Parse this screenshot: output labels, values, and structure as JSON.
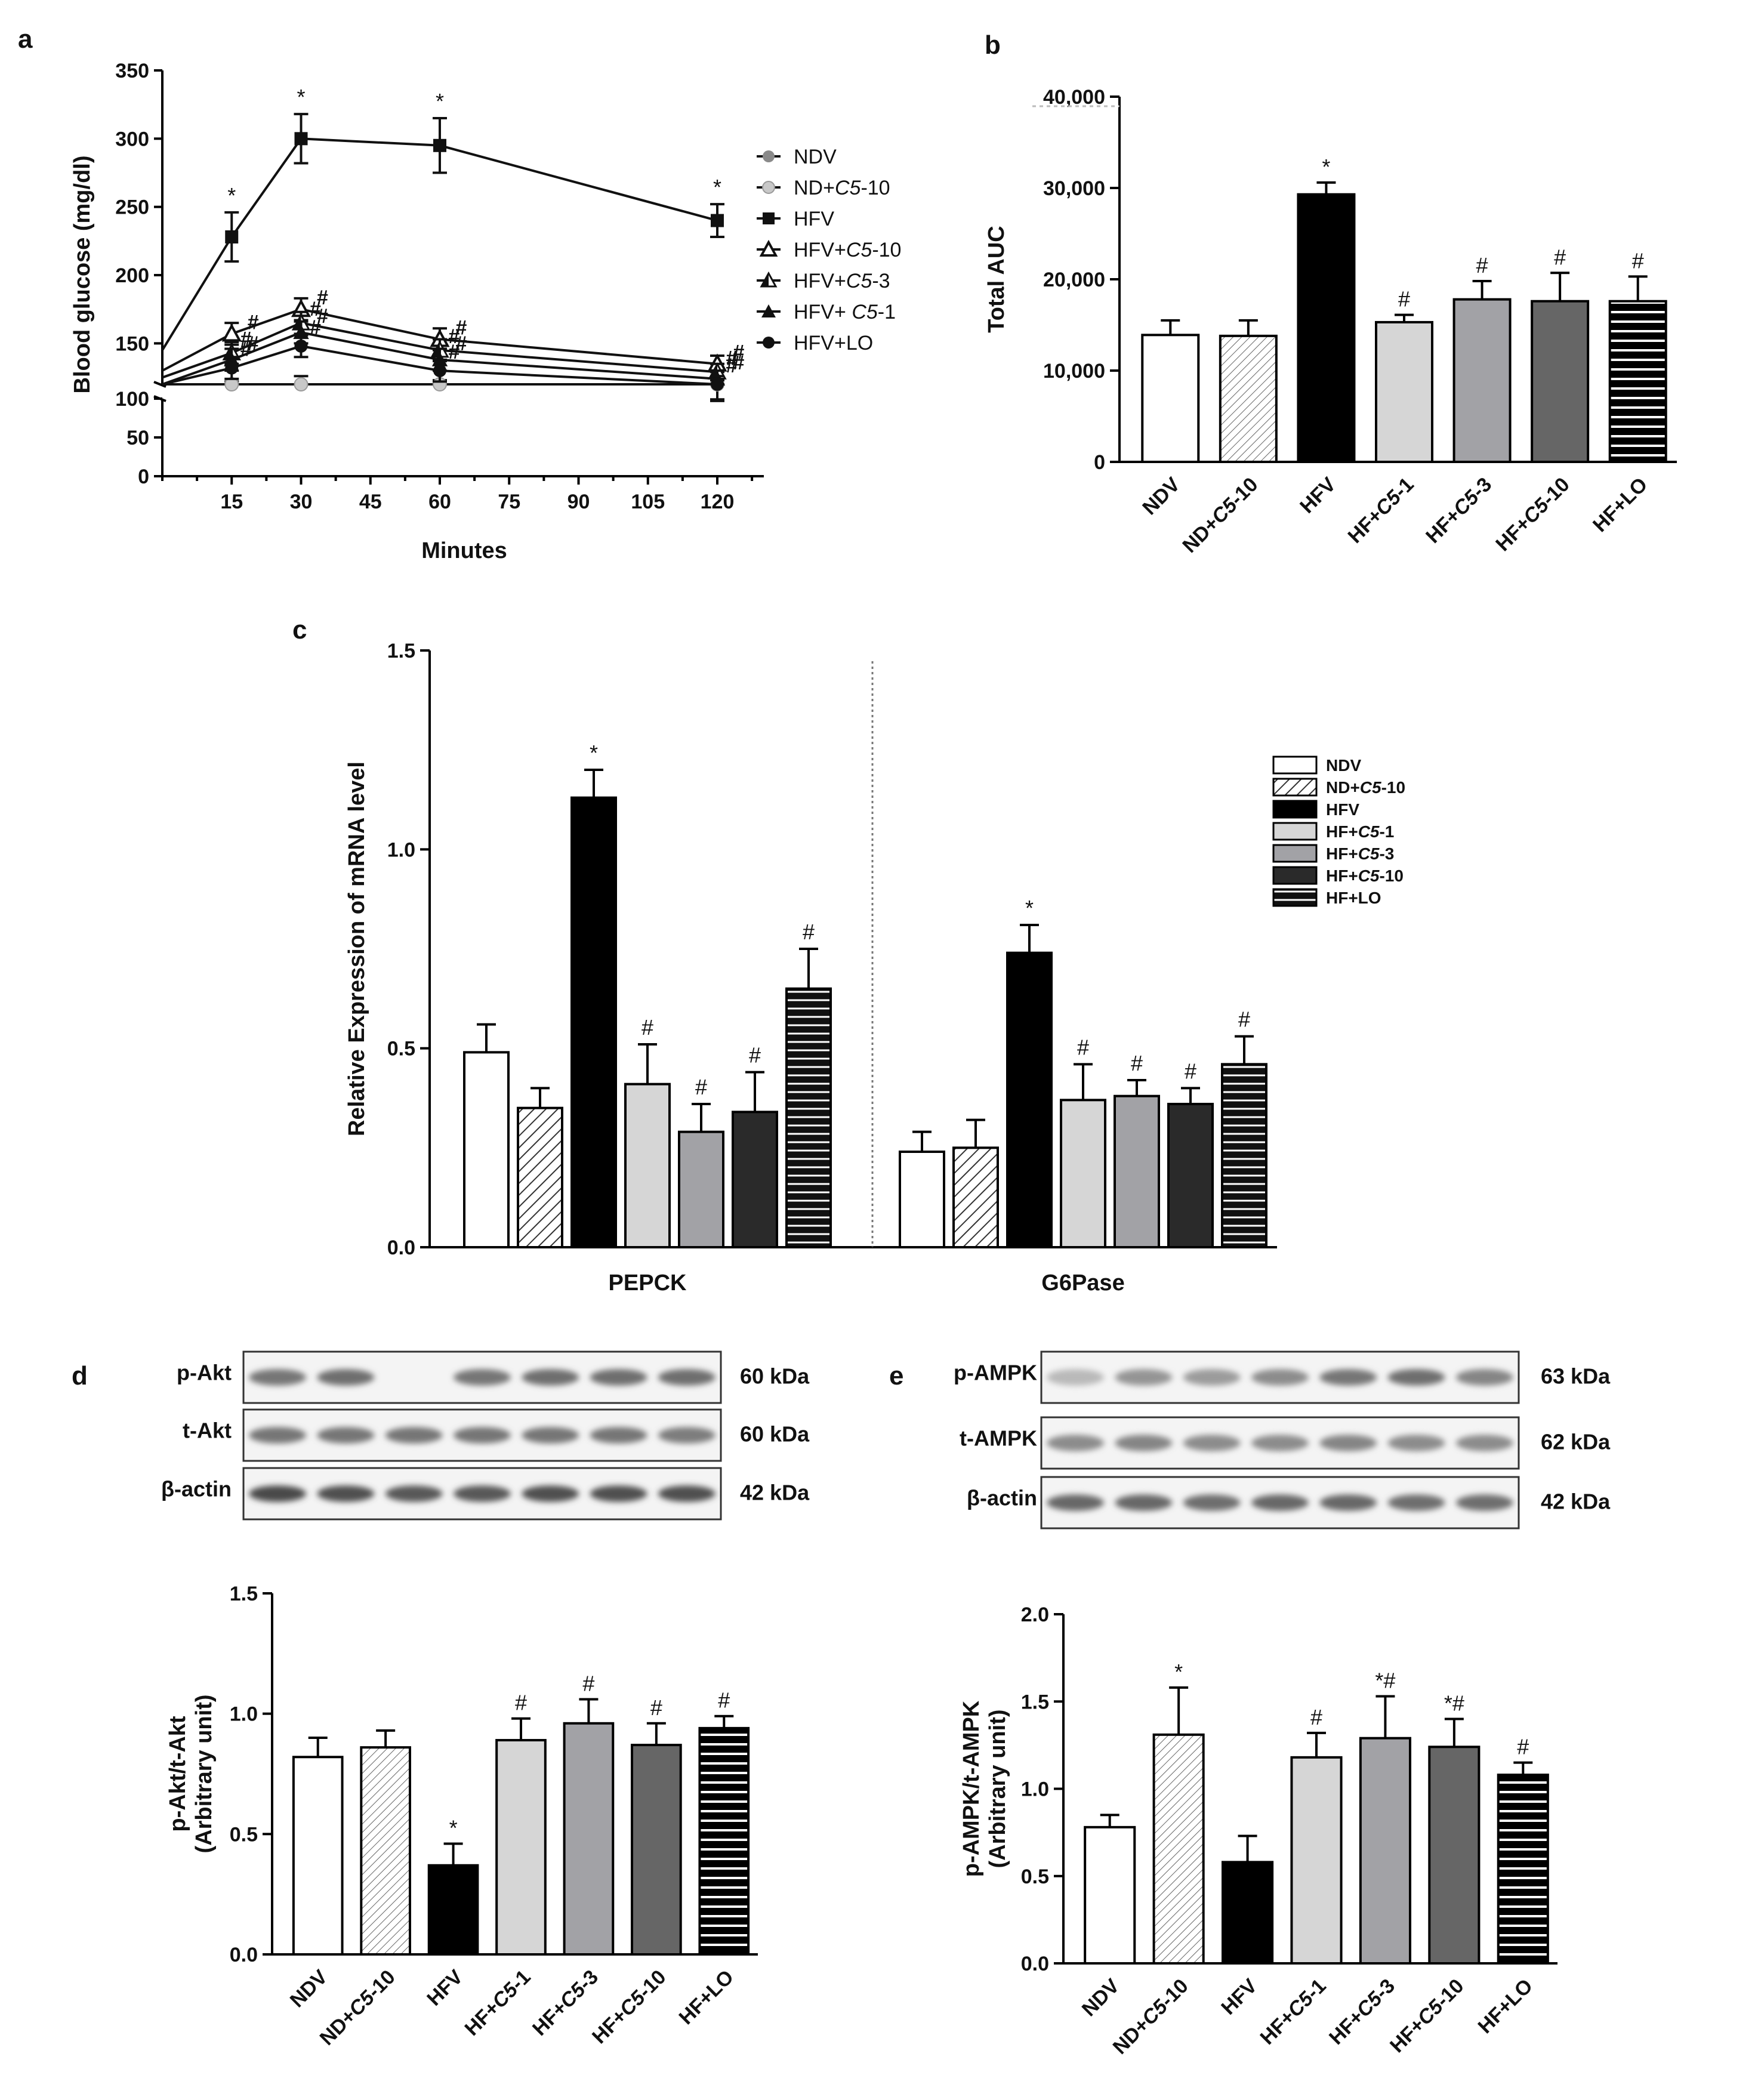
{
  "panel_letters": [
    "a",
    "b",
    "c",
    "d",
    "e"
  ],
  "colors": {
    "NDV": "#ffffff",
    "ND+C5-10": "#ffffff",
    "HFV": "#000000",
    "HF+C5-1": "#d6d6d6",
    "HF+C5-3": "#a2a2a6",
    "HF+C5-10": "#6a6a6a",
    "HF+LO": "#111111",
    "HF+C5-10_c": "#2a2a2a"
  },
  "chart_data": [
    {
      "id": "a",
      "type": "line",
      "xlabel": "Minutes",
      "ylabel": "Blood  glucose  (mg/dl)",
      "x_ticks": [
        "15",
        "30",
        "45",
        "60",
        "75",
        "90",
        "105",
        "120"
      ],
      "y_ticks_lower": [
        "0",
        "50",
        "100"
      ],
      "y_ticks_upper": [
        "150",
        "200",
        "250",
        "300",
        "350"
      ],
      "y_axis_break": [
        100,
        120
      ],
      "ylim": [
        0,
        350
      ],
      "xlim": [
        0,
        135
      ],
      "x": [
        0,
        15,
        30,
        60,
        120
      ],
      "series": [
        {
          "name": "NDV",
          "marker": "circle-gray",
          "values": [
            110,
            114,
            118,
            116,
            107
          ],
          "err": [
            0,
            8,
            8,
            7,
            8
          ]
        },
        {
          "name": "ND+C5-10",
          "marker": "circle-lightgray",
          "values": [
            108,
            110,
            113,
            112,
            104
          ],
          "err": [
            0,
            7,
            7,
            6,
            7
          ]
        },
        {
          "name": "HFV",
          "marker": "square",
          "values": [
            145,
            228,
            300,
            295,
            240
          ],
          "err": [
            0,
            18,
            18,
            20,
            12
          ],
          "sig": [
            "",
            "*",
            "*",
            "*",
            "*"
          ]
        },
        {
          "name": "HFV+C5-10",
          "marker": "triangle-open",
          "values": [
            130,
            157,
            175,
            153,
            135
          ],
          "err": [
            0,
            8,
            8,
            8,
            6
          ],
          "sig": [
            "",
            "#",
            "#",
            "#",
            "#"
          ]
        },
        {
          "name": "HFV+C5-3",
          "marker": "triangle-half",
          "values": [
            125,
            143,
            165,
            145,
            129
          ],
          "err": [
            0,
            8,
            8,
            8,
            6
          ],
          "sig": [
            "",
            "#",
            "#",
            "#",
            "#"
          ]
        },
        {
          "name": "HFV+ C5-1",
          "marker": "triangle-filled",
          "values": [
            120,
            138,
            158,
            138,
            124
          ],
          "err": [
            0,
            8,
            8,
            8,
            6
          ],
          "sig": [
            "",
            "#",
            "#",
            "#",
            "#"
          ]
        },
        {
          "name": "HFV+LO",
          "marker": "circle-black",
          "values": [
            118,
            132,
            148,
            130,
            120
          ],
          "err": [
            0,
            8,
            8,
            8,
            6
          ],
          "sig": [
            "",
            "#",
            "#",
            "#",
            "#"
          ]
        }
      ],
      "legend": [
        "NDV",
        "ND+C5-10",
        "HFV",
        "HFV+C5-10",
        "HFV+C5-3",
        "HFV+ C5-1",
        "HFV+LO"
      ]
    },
    {
      "id": "b",
      "type": "bar",
      "ylabel": "Total AUC",
      "ylim": [
        0,
        40000
      ],
      "y_ticks": [
        "0",
        "10,000",
        "20,000",
        "30,000",
        "40,000"
      ],
      "categories": [
        "NDV",
        "ND+C5-10",
        "HFV",
        "HF+C5-1",
        "HF+C5-3",
        "HF+C5-10",
        "HF+LO"
      ],
      "values": [
        13900,
        13800,
        29300,
        15300,
        17800,
        17600,
        17600
      ],
      "err": [
        1600,
        1700,
        1300,
        800,
        2000,
        3100,
        2700
      ],
      "sig": [
        "",
        "",
        "*",
        "#",
        "#",
        "#",
        "#"
      ]
    },
    {
      "id": "c",
      "type": "bar",
      "ylabel": "Relative Expression of mRNA level",
      "ylim": [
        0,
        1.5
      ],
      "y_ticks": [
        "0.0",
        "0.5",
        "1.0",
        "1.5"
      ],
      "groups": [
        "PEPCK",
        "G6Pase"
      ],
      "series": [
        {
          "name": "NDV",
          "values": [
            0.49,
            0.24
          ],
          "err": [
            0.07,
            0.05
          ],
          "sig": [
            "",
            ""
          ]
        },
        {
          "name": "ND+C5-10",
          "values": [
            0.35,
            0.25
          ],
          "err": [
            0.05,
            0.07
          ],
          "sig": [
            "",
            ""
          ]
        },
        {
          "name": "HFV",
          "values": [
            1.13,
            0.74
          ],
          "err": [
            0.07,
            0.07
          ],
          "sig": [
            "*",
            "*"
          ]
        },
        {
          "name": "HF+C5-1",
          "values": [
            0.41,
            0.37
          ],
          "err": [
            0.1,
            0.09
          ],
          "sig": [
            "#",
            "#"
          ]
        },
        {
          "name": "HF+C5-3",
          "values": [
            0.29,
            0.38
          ],
          "err": [
            0.07,
            0.04
          ],
          "sig": [
            "#",
            "#"
          ]
        },
        {
          "name": "HF+C5-10",
          "values": [
            0.34,
            0.36
          ],
          "err": [
            0.1,
            0.04
          ],
          "sig": [
            "#",
            "#"
          ]
        },
        {
          "name": "HF+LO",
          "values": [
            0.65,
            0.46
          ],
          "err": [
            0.1,
            0.07
          ],
          "sig": [
            "#",
            "#"
          ]
        }
      ],
      "legend": [
        "NDV",
        "ND+C5-10",
        "HFV",
        "HF+C5-1",
        "HF+C5-3",
        "HF+C5-10",
        "HF+LO"
      ]
    },
    {
      "id": "d",
      "type": "bar",
      "ylabel": "p-Akt/t-Akt (Arbitrary unit)",
      "ylim": [
        0,
        1.5
      ],
      "y_ticks": [
        "0.0",
        "0.5",
        "1.0",
        "1.5"
      ],
      "categories": [
        "NDV",
        "ND+C5-10",
        "HFV",
        "HF+C5-1",
        "HF+C5-3",
        "HF+C5-10",
        "HF+LO"
      ],
      "values": [
        0.82,
        0.86,
        0.37,
        0.89,
        0.96,
        0.87,
        0.94
      ],
      "err": [
        0.08,
        0.07,
        0.09,
        0.09,
        0.1,
        0.09,
        0.05
      ],
      "sig": [
        "",
        "",
        "*",
        "#",
        "#",
        "#",
        "#"
      ]
    },
    {
      "id": "e",
      "type": "bar",
      "ylabel": "p-AMPK/t-AMPK (Arbitrary unit)",
      "ylim": [
        0,
        2.0
      ],
      "y_ticks": [
        "0.0",
        "0.5",
        "1.0",
        "1.5",
        "2.0"
      ],
      "categories": [
        "NDV",
        "ND+C5-10",
        "HFV",
        "HF+C5-1",
        "HF+C5-3",
        "HF+C5-10",
        "HF+LO"
      ],
      "values": [
        0.78,
        1.31,
        0.58,
        1.18,
        1.29,
        1.24,
        1.08
      ],
      "err": [
        0.07,
        0.27,
        0.15,
        0.14,
        0.24,
        0.16,
        0.07
      ],
      "sig": [
        "",
        "*",
        "",
        "#",
        "*#",
        "*#",
        "#"
      ]
    }
  ],
  "blots": {
    "d": {
      "rows": [
        {
          "label": "p-Akt",
          "kda": "60 kDa",
          "intensity": [
            0.55,
            0.6,
            0.0,
            0.55,
            0.6,
            0.6,
            0.6
          ]
        },
        {
          "label": "t-Akt",
          "kda": "60 kDa",
          "intensity": [
            0.55,
            0.55,
            0.55,
            0.55,
            0.55,
            0.55,
            0.5
          ]
        },
        {
          "label": "β-actin",
          "kda": "42 kDa",
          "intensity": [
            0.85,
            0.8,
            0.75,
            0.75,
            0.8,
            0.8,
            0.8
          ]
        }
      ]
    },
    "e": {
      "rows": [
        {
          "label": "p-AMPK",
          "kda": "63 kDa",
          "intensity": [
            0.1,
            0.35,
            0.3,
            0.4,
            0.55,
            0.6,
            0.45
          ]
        },
        {
          "label": "t-AMPK",
          "kda": "62 kDa",
          "intensity": [
            0.4,
            0.45,
            0.4,
            0.4,
            0.45,
            0.4,
            0.4
          ]
        },
        {
          "label": "β-actin",
          "kda": "42 kDa",
          "intensity": [
            0.65,
            0.65,
            0.6,
            0.65,
            0.65,
            0.6,
            0.6
          ]
        }
      ]
    }
  }
}
